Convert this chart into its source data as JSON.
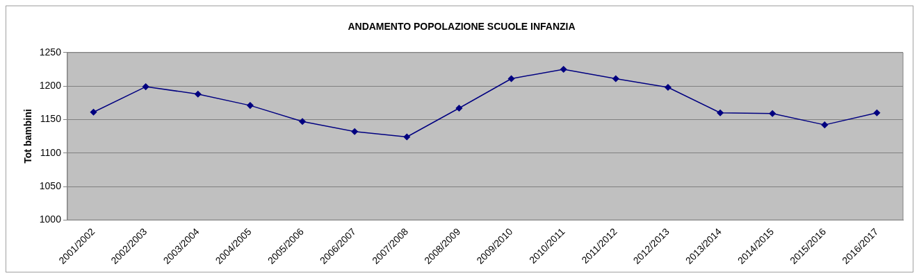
{
  "chart_data": {
    "type": "line",
    "title": "ANDAMENTO POPOLAZIONE SCUOLE INFANZIA",
    "ylabel": "Tot bambini",
    "categories": [
      "2001/2002",
      "2002/2003",
      "2003/2004",
      "2004/2005",
      "2005/2006",
      "2006/2007",
      "2007/2008",
      "2008/2009",
      "2009/2010",
      "2010/2011",
      "2011/2012",
      "2012/2013",
      "2013/2014",
      "2014/2015",
      "2015/2016",
      "2016/2017"
    ],
    "series": [
      {
        "color": "#000080",
        "values": [
          1161,
          1199,
          1188,
          1171,
          1147,
          1132,
          1124,
          1167,
          1211,
          1225,
          1211,
          1198,
          1160,
          1159,
          1142,
          1160
        ]
      }
    ],
    "ylim": [
      1000,
      1250
    ],
    "yticks": [
      1000,
      1050,
      1100,
      1150,
      1200,
      1250
    ],
    "grid": "y",
    "legend": false,
    "marker": "diamond",
    "line_style": "solid"
  }
}
